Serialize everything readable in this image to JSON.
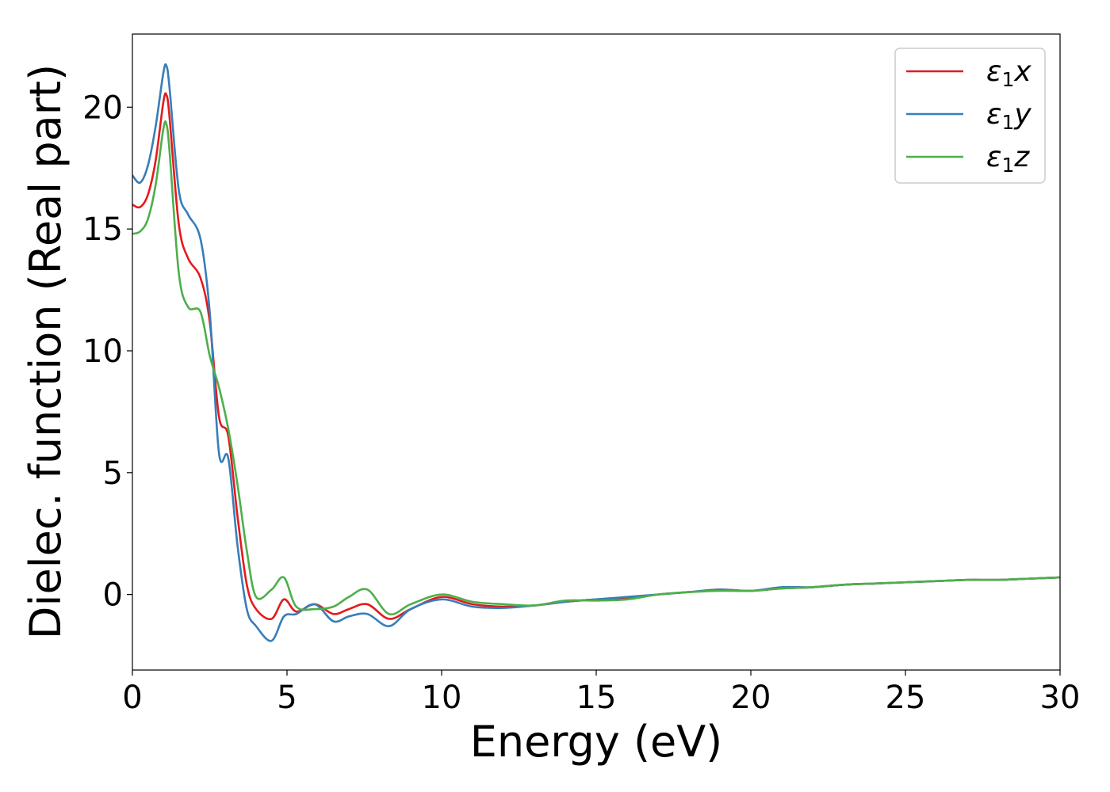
{
  "chart_data": {
    "type": "line",
    "xlabel": "Energy (eV)",
    "ylabel": "Dielec. function (Real part)",
    "xlim": [
      0,
      30
    ],
    "ylim": [
      -3.1,
      23.0
    ],
    "xticks": [
      0,
      5,
      10,
      15,
      20,
      25,
      30
    ],
    "yticks": [
      0,
      5,
      10,
      15,
      20
    ],
    "grid": false,
    "legend_position": "top-right",
    "series": [
      {
        "name": "ε₁x",
        "legend_main": "ε",
        "legend_sub": "1",
        "legend_var": "x",
        "color": "#e41a1c",
        "x": [
          0,
          0.25,
          0.5,
          0.75,
          1.0,
          1.1,
          1.2,
          1.5,
          1.8,
          2.2,
          2.5,
          2.8,
          3.1,
          3.4,
          3.7,
          4.0,
          4.5,
          4.9,
          5.3,
          5.9,
          6.5,
          7.0,
          7.6,
          8.3,
          9.0,
          10.0,
          11.0,
          12.0,
          13.0,
          14.0,
          15.0,
          16.0,
          17.0,
          18.0,
          19.0,
          20.0,
          21.0,
          22.0,
          23.0,
          24.0,
          25.0,
          26.0,
          27.0,
          28.0,
          29.0,
          30.0
        ],
        "y": [
          16.0,
          15.9,
          16.4,
          17.8,
          20.2,
          20.5,
          19.6,
          15.2,
          13.8,
          13.0,
          11.2,
          7.3,
          6.5,
          3.2,
          0.4,
          -0.6,
          -1.0,
          -0.2,
          -0.7,
          -0.4,
          -0.8,
          -0.6,
          -0.4,
          -1.0,
          -0.6,
          -0.1,
          -0.4,
          -0.5,
          -0.45,
          -0.3,
          -0.2,
          -0.15,
          0.0,
          0.1,
          0.2,
          0.15,
          0.25,
          0.3,
          0.4,
          0.45,
          0.5,
          0.55,
          0.6,
          0.6,
          0.65,
          0.7
        ]
      },
      {
        "name": "ε₁y",
        "legend_main": "ε",
        "legend_sub": "1",
        "legend_var": "y",
        "color": "#377eb8",
        "x": [
          0,
          0.25,
          0.5,
          0.75,
          1.0,
          1.1,
          1.2,
          1.5,
          1.8,
          2.2,
          2.5,
          2.8,
          3.1,
          3.4,
          3.7,
          4.0,
          4.5,
          4.9,
          5.3,
          5.9,
          6.5,
          7.0,
          7.6,
          8.3,
          9.0,
          10.0,
          11.0,
          12.0,
          13.0,
          14.0,
          15.0,
          16.0,
          17.0,
          18.0,
          19.0,
          20.0,
          21.0,
          22.0,
          23.0,
          24.0,
          25.0,
          26.0,
          27.0,
          28.0,
          29.0,
          30.0
        ],
        "y": [
          17.2,
          16.9,
          17.6,
          19.2,
          21.4,
          21.7,
          20.8,
          16.6,
          15.6,
          14.6,
          11.6,
          5.8,
          5.6,
          2.0,
          -0.6,
          -1.3,
          -1.9,
          -0.9,
          -0.8,
          -0.4,
          -1.1,
          -0.9,
          -0.8,
          -1.3,
          -0.6,
          -0.2,
          -0.5,
          -0.55,
          -0.45,
          -0.3,
          -0.2,
          -0.1,
          0.0,
          0.1,
          0.2,
          0.15,
          0.3,
          0.3,
          0.4,
          0.45,
          0.5,
          0.55,
          0.6,
          0.6,
          0.65,
          0.7
        ]
      },
      {
        "name": "ε₁z",
        "legend_main": "ε",
        "legend_sub": "1",
        "legend_var": "z",
        "color": "#4daf4a",
        "x": [
          0,
          0.25,
          0.5,
          0.75,
          1.0,
          1.1,
          1.2,
          1.5,
          1.8,
          2.2,
          2.5,
          2.8,
          3.1,
          3.4,
          3.7,
          4.0,
          4.5,
          4.9,
          5.3,
          5.9,
          6.5,
          7.0,
          7.6,
          8.3,
          9.0,
          10.0,
          11.0,
          12.0,
          13.0,
          14.0,
          15.0,
          16.0,
          17.0,
          18.0,
          19.0,
          20.0,
          21.0,
          22.0,
          23.0,
          24.0,
          25.0,
          26.0,
          27.0,
          28.0,
          29.0,
          30.0
        ],
        "y": [
          14.8,
          14.9,
          15.4,
          16.8,
          19.1,
          19.3,
          18.2,
          13.2,
          11.8,
          11.6,
          9.8,
          8.5,
          6.8,
          4.5,
          1.8,
          -0.1,
          0.2,
          0.7,
          -0.5,
          -0.6,
          -0.5,
          -0.1,
          0.2,
          -0.8,
          -0.4,
          0.0,
          -0.3,
          -0.4,
          -0.45,
          -0.25,
          -0.25,
          -0.2,
          0.0,
          0.1,
          0.15,
          0.15,
          0.25,
          0.3,
          0.4,
          0.45,
          0.5,
          0.55,
          0.6,
          0.6,
          0.65,
          0.7
        ]
      }
    ]
  }
}
